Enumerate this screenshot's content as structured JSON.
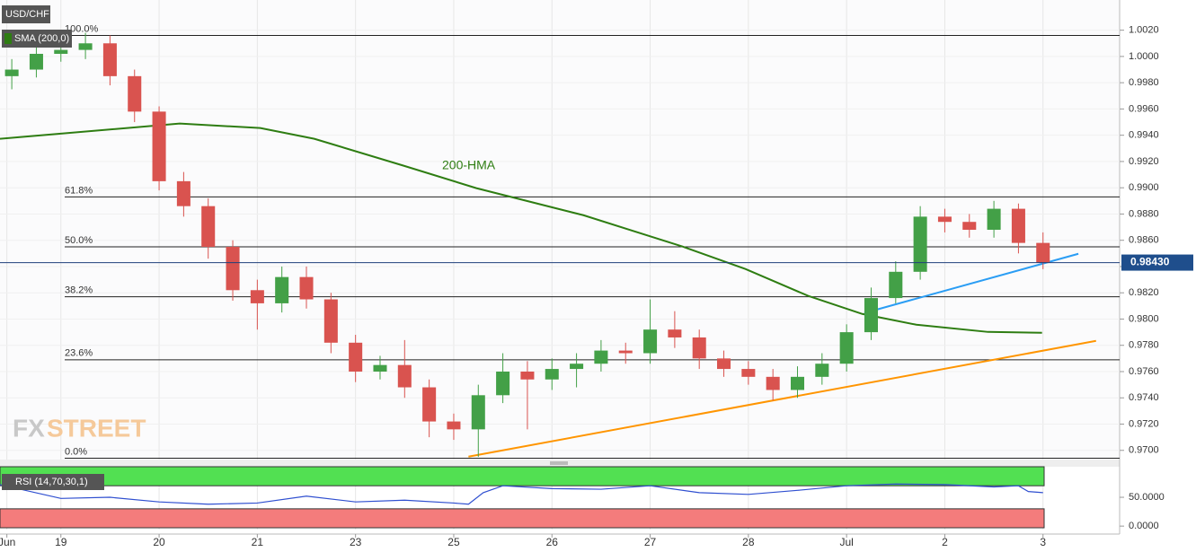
{
  "chart_data": [
    {
      "type": "candlestick",
      "symbol": "USD/CHF",
      "indicator": "SMA (200,0)",
      "watermark": [
        "FX",
        "STREET"
      ],
      "up_color": "#43a047",
      "down_color": "#d9534f",
      "x": [
        -0.5,
        -0.25,
        0,
        0.25,
        0.5,
        0.75,
        1,
        1.25,
        1.5,
        1.75,
        2,
        2.25,
        2.5,
        2.75,
        3,
        3.25,
        3.5,
        3.75,
        4,
        4.25,
        4.5,
        4.75,
        5,
        5.25,
        5.5,
        5.75,
        6,
        6.25,
        6.5,
        6.75,
        7,
        7.25,
        7.5,
        7.75,
        8,
        8.25,
        8.5,
        8.75,
        9,
        9.25,
        9.5,
        9.75,
        10
      ],
      "open": [
        0.9985,
        0.999,
        1.0002,
        1.0005,
        1.001,
        0.9985,
        0.9958,
        0.9905,
        0.9886,
        0.9855,
        0.9822,
        0.9812,
        0.9832,
        0.9815,
        0.9782,
        0.976,
        0.9765,
        0.9748,
        0.9722,
        0.9716,
        0.9742,
        0.976,
        0.9754,
        0.9762,
        0.9766,
        0.9776,
        0.9774,
        0.9792,
        0.9786,
        0.977,
        0.9762,
        0.9756,
        0.9746,
        0.9756,
        0.9766,
        0.979,
        0.9816,
        0.9836,
        0.9878,
        0.9874,
        0.9868,
        0.9884,
        0.9858
      ],
      "high": [
        0.9998,
        1.001,
        1.0012,
        1.0018,
        1.0016,
        0.999,
        0.9962,
        0.9912,
        0.9892,
        0.986,
        0.983,
        0.984,
        0.984,
        0.982,
        0.9788,
        0.9772,
        0.9784,
        0.9754,
        0.9728,
        0.975,
        0.9774,
        0.9768,
        0.977,
        0.9774,
        0.9784,
        0.9782,
        0.9815,
        0.9806,
        0.9792,
        0.9776,
        0.9768,
        0.9762,
        0.9764,
        0.9774,
        0.9796,
        0.9824,
        0.9844,
        0.9886,
        0.9884,
        0.988,
        0.989,
        0.9888,
        0.9866
      ],
      "low": [
        0.9975,
        0.9984,
        0.9996,
        0.9998,
        0.9978,
        0.995,
        0.9898,
        0.9878,
        0.9846,
        0.9814,
        0.9792,
        0.9805,
        0.9808,
        0.9774,
        0.9752,
        0.9754,
        0.974,
        0.971,
        0.9708,
        0.9695,
        0.9736,
        0.9716,
        0.9746,
        0.9748,
        0.976,
        0.9766,
        0.9766,
        0.9778,
        0.9762,
        0.9756,
        0.975,
        0.9738,
        0.974,
        0.975,
        0.976,
        0.9784,
        0.9812,
        0.983,
        0.9866,
        0.9862,
        0.9862,
        0.985,
        0.9838
      ],
      "close": [
        0.999,
        1.0002,
        1.0005,
        1.001,
        0.9985,
        0.9958,
        0.9905,
        0.9886,
        0.9855,
        0.9822,
        0.9812,
        0.9832,
        0.9815,
        0.9782,
        0.976,
        0.9765,
        0.9748,
        0.9722,
        0.9716,
        0.9742,
        0.976,
        0.9754,
        0.9762,
        0.9766,
        0.9776,
        0.9774,
        0.9792,
        0.9786,
        0.977,
        0.9762,
        0.9756,
        0.9746,
        0.9756,
        0.9766,
        0.979,
        0.9816,
        0.9836,
        0.9878,
        0.9874,
        0.9868,
        0.9884,
        0.9858,
        0.9843
      ],
      "lines": [
        {
          "name": "200-HMA",
          "color": "#2e7d12",
          "x": [
            -0.62,
            1.21,
            2.03,
            2.58,
            3.49,
            4.23,
            5.32,
            6.33,
            6.97,
            7.61,
            8.16,
            8.71,
            9.44,
            9.99
          ],
          "values": [
            0.99373,
            0.99489,
            0.99455,
            0.99373,
            0.99168,
            0.98997,
            0.98791,
            0.98552,
            0.98381,
            0.98176,
            0.98039,
            0.97957,
            0.97902,
            0.97896
          ]
        },
        {
          "color": "#ff9500",
          "x": [
            4.15,
            10.54
          ],
          "values": [
            0.96952,
            0.97834
          ]
        },
        {
          "color": "#2a9df4",
          "x": [
            8.18,
            10.36
          ],
          "values": [
            0.98046,
            0.98497
          ]
        }
      ],
      "fib_levels": [
        {
          "label": "100.0%",
          "value": 1.0016
        },
        {
          "label": "61.8%",
          "value": 0.9893
        },
        {
          "label": "50.0%",
          "value": 0.9855
        },
        {
          "label": "38.2%",
          "value": 0.9817
        },
        {
          "label": "23.6%",
          "value": 0.9769
        },
        {
          "label": "0.0%",
          "value": 0.9694
        }
      ],
      "last_price": {
        "value": 0.9843,
        "label": "0.98430"
      },
      "xlim": [
        -0.62,
        10.78
      ],
      "xticks": [
        {
          "value": -0.55,
          "label": "Jun"
        },
        {
          "value": 0,
          "label": "19"
        },
        {
          "value": 1,
          "label": "20"
        },
        {
          "value": 2,
          "label": "21"
        },
        {
          "value": 3,
          "label": "23"
        },
        {
          "value": 4,
          "label": "25"
        },
        {
          "value": 5,
          "label": "26"
        },
        {
          "value": 6,
          "label": "27"
        },
        {
          "value": 7,
          "label": "28"
        },
        {
          "value": 8,
          "label": "Jul"
        },
        {
          "value": 9,
          "label": "2"
        },
        {
          "value": 10,
          "label": "3"
        }
      ],
      "ylim": [
        0.9693,
        1.0043
      ],
      "yticks": [
        {
          "value": 0.97,
          "label": "0.9700"
        },
        {
          "value": 0.972,
          "label": "0.9720"
        },
        {
          "value": 0.974,
          "label": "0.9740"
        },
        {
          "value": 0.976,
          "label": "0.9760"
        },
        {
          "value": 0.978,
          "label": "0.9780"
        },
        {
          "value": 0.98,
          "label": "0.9800"
        },
        {
          "value": 0.982,
          "label": "0.9820"
        },
        {
          "value": 0.984,
          "label": "0.9840"
        },
        {
          "value": 0.986,
          "label": "0.9860"
        },
        {
          "value": 0.988,
          "label": "0.9880"
        },
        {
          "value": 0.99,
          "label": "0.9900"
        },
        {
          "value": 0.992,
          "label": "0.9920"
        },
        {
          "value": 0.994,
          "label": "0.9940"
        },
        {
          "value": 0.996,
          "label": "0.9960"
        },
        {
          "value": 0.998,
          "label": "0.9980"
        },
        {
          "value": 1.0,
          "label": "1.0000"
        },
        {
          "value": 1.002,
          "label": "1.0020"
        }
      ],
      "grid": true
    },
    {
      "type": "line",
      "title": "RSI (14,70,30,1)",
      "color": "#2f4fd0",
      "x": [
        -0.62,
        0,
        0.5,
        1,
        1.5,
        2,
        2.5,
        3,
        3.5,
        4,
        4.15,
        4.3,
        4.5,
        5,
        5.5,
        6,
        6.5,
        7,
        7.5,
        8,
        8.5,
        9,
        9.5,
        9.75,
        9.85,
        10
      ],
      "values": [
        72,
        48,
        50,
        42,
        38,
        40,
        52,
        42,
        45,
        40,
        38,
        58,
        70,
        65,
        64,
        70,
        58,
        55,
        62,
        70,
        73,
        72,
        68,
        70,
        60,
        58
      ],
      "overbought": 70,
      "oversold": 30,
      "ylim": [
        -6,
        103
      ],
      "yticks": [
        {
          "value": 50,
          "label": "50.0000"
        },
        {
          "value": 0,
          "label": "0.0000"
        }
      ]
    }
  ]
}
